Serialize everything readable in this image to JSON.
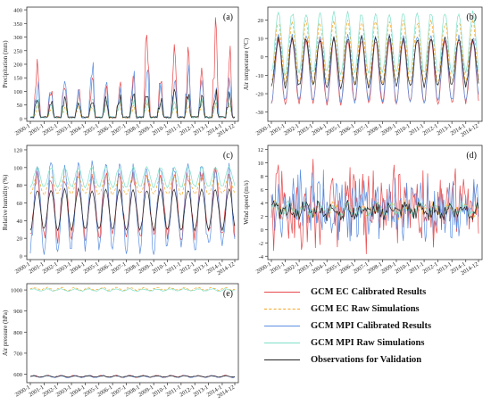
{
  "x_ticks": [
    "2000-1",
    "2001-1",
    "2002-1",
    "2003-1",
    "2004-1",
    "2005-1",
    "2006-1",
    "2007-1",
    "2008-1",
    "2009-1",
    "2010-1",
    "2011-1",
    "2012-1",
    "2013-1",
    "2014-1",
    "2014-12"
  ],
  "series_styles": [
    {
      "name": "GCM EC Calibrated Results",
      "color": "#e8474a",
      "dash": ""
    },
    {
      "name": "GCM EC Raw Simulations",
      "color": "#f5a623",
      "dash": "3,2"
    },
    {
      "name": "GCM MPI Calibrated Results",
      "color": "#5b8fe0",
      "dash": ""
    },
    {
      "name": "GCM MPI Raw Simulations",
      "color": "#7fe0c8",
      "dash": ""
    },
    {
      "name": "Observations for Validation",
      "color": "#222222",
      "dash": ""
    }
  ],
  "chart_data": [
    {
      "panel": "(a)",
      "type": "line",
      "ylabel": "Precipitation (mm)",
      "ylim": [
        -10,
        410
      ],
      "yticks": [
        0,
        50,
        100,
        150,
        200,
        250,
        300,
        350,
        400
      ],
      "x_range": [
        "2000-01",
        "2014-12"
      ],
      "series": [
        {
          "name": "GCM EC Calibrated Results",
          "annual_peaks": [
            240,
            130,
            160,
            110,
            150,
            130,
            150,
            190,
            330,
            190,
            330,
            280,
            190,
            400,
            270
          ]
        },
        {
          "name": "GCM EC Raw Simulations",
          "annual_peaks": [
            60,
            55,
            65,
            60,
            62,
            58,
            64,
            60,
            66,
            61,
            63,
            60,
            65,
            62,
            64
          ]
        },
        {
          "name": "GCM MPI Calibrated Results",
          "annual_peaks": [
            160,
            140,
            180,
            120,
            260,
            170,
            120,
            200,
            200,
            150,
            190,
            220,
            180,
            160,
            170
          ]
        },
        {
          "name": "GCM MPI Raw Simulations",
          "annual_peaks": [
            75,
            70,
            80,
            72,
            78,
            74,
            76,
            73,
            79,
            71,
            77,
            75,
            78,
            74,
            76
          ]
        },
        {
          "name": "Observations for Validation",
          "annual_peaks": [
            90,
            80,
            100,
            70,
            95,
            85,
            90,
            100,
            110,
            90,
            120,
            95,
            90,
            110,
            100
          ]
        }
      ]
    },
    {
      "panel": "(b)",
      "type": "line",
      "ylabel": "Air temperature (°C)",
      "ylim": [
        -35,
        27
      ],
      "yticks": [
        -30,
        -20,
        -10,
        0,
        10,
        20
      ],
      "x_range": [
        "2000-01",
        "2014-12"
      ],
      "series": [
        {
          "name": "GCM EC Calibrated Results",
          "annual_max": 9,
          "annual_min": -25
        },
        {
          "name": "GCM EC Raw Simulations",
          "annual_max": 19,
          "annual_min": -14
        },
        {
          "name": "GCM MPI Calibrated Results",
          "annual_max": 11,
          "annual_min": -24
        },
        {
          "name": "GCM MPI Raw Simulations",
          "annual_max": 24,
          "annual_min": -9
        },
        {
          "name": "Observations for Validation",
          "annual_max": 10,
          "annual_min": -16
        }
      ]
    },
    {
      "panel": "(c)",
      "type": "line",
      "ylabel": "Relative humidity (%)",
      "ylim": [
        -4,
        125
      ],
      "yticks": [
        0,
        20,
        40,
        60,
        80,
        100,
        120
      ],
      "x_range": [
        "2000-01",
        "2014-12"
      ],
      "series": [
        {
          "name": "GCM EC Calibrated Results",
          "annual_max": 92,
          "annual_min": 22
        },
        {
          "name": "GCM EC Raw Simulations",
          "annual_max": 90,
          "annual_min": 70
        },
        {
          "name": "GCM MPI Calibrated Results",
          "annual_max": 100,
          "annual_min": 10
        },
        {
          "name": "GCM MPI Raw Simulations",
          "annual_max": 100,
          "annual_min": 78
        },
        {
          "name": "Observations for Validation",
          "annual_max": 75,
          "annual_min": 30
        }
      ]
    },
    {
      "panel": "(d)",
      "type": "line",
      "ylabel": "Wind speed (m/s)",
      "ylim": [
        -4.5,
        12.6
      ],
      "yticks": [
        -4,
        -2,
        0,
        2,
        4,
        6,
        8,
        10,
        12
      ],
      "x_range": [
        "2000-01",
        "2014-12"
      ],
      "series": [
        {
          "name": "GCM EC Calibrated Results",
          "mean": 3.5,
          "range": [
            -3,
            12
          ]
        },
        {
          "name": "GCM EC Raw Simulations",
          "mean": 3,
          "range": [
            1.5,
            4.5
          ]
        },
        {
          "name": "GCM MPI Calibrated Results",
          "mean": 3.5,
          "range": [
            -2,
            10.5
          ]
        },
        {
          "name": "GCM MPI Raw Simulations",
          "mean": 3,
          "range": [
            2,
            4
          ]
        },
        {
          "name": "Observations for Validation",
          "mean": 2.8,
          "range": [
            1.5,
            4.5
          ]
        }
      ]
    },
    {
      "panel": "(e)",
      "type": "line",
      "ylabel": "Air pressure (hPa)",
      "ylim": [
        560,
        1030
      ],
      "yticks": [
        600,
        700,
        800,
        900,
        1000
      ],
      "x_range": [
        "2000-01",
        "2014-12"
      ],
      "series": [
        {
          "name": "GCM EC Calibrated Results",
          "mean": 590,
          "amplitude": 4
        },
        {
          "name": "GCM EC Raw Simulations",
          "mean": 1005,
          "amplitude": 6
        },
        {
          "name": "GCM MPI Calibrated Results",
          "mean": 589,
          "amplitude": 4
        },
        {
          "name": "GCM MPI Raw Simulations",
          "mean": 1000,
          "amplitude": 5
        },
        {
          "name": "Observations for Validation",
          "mean": 590,
          "amplitude": 3
        }
      ]
    }
  ]
}
